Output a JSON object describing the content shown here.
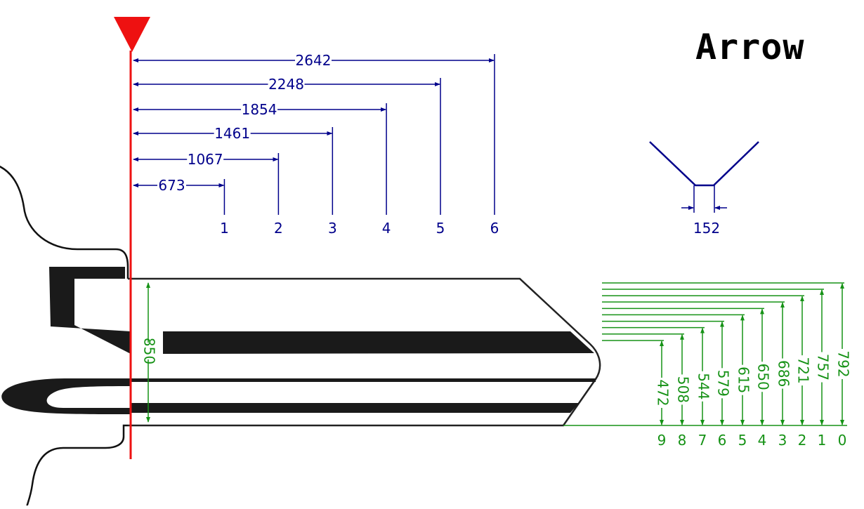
{
  "title": "Arrow",
  "colors": {
    "blue": "#00008b",
    "green": "#169216",
    "red": "#ee1111",
    "black": "#111111"
  },
  "cut_positions": {
    "distances": [
      "673",
      "1067",
      "1461",
      "1854",
      "2248",
      "2642"
    ],
    "labels": [
      "1",
      "2",
      "3",
      "4",
      "5",
      "6"
    ]
  },
  "cutter": {
    "width": "152"
  },
  "key_height": "850",
  "depths": {
    "values": [
      "472",
      "508",
      "544",
      "579",
      "615",
      "650",
      "686",
      "721",
      "757",
      "792"
    ],
    "labels": [
      "9",
      "8",
      "7",
      "6",
      "5",
      "4",
      "3",
      "2",
      "1",
      "0"
    ]
  }
}
